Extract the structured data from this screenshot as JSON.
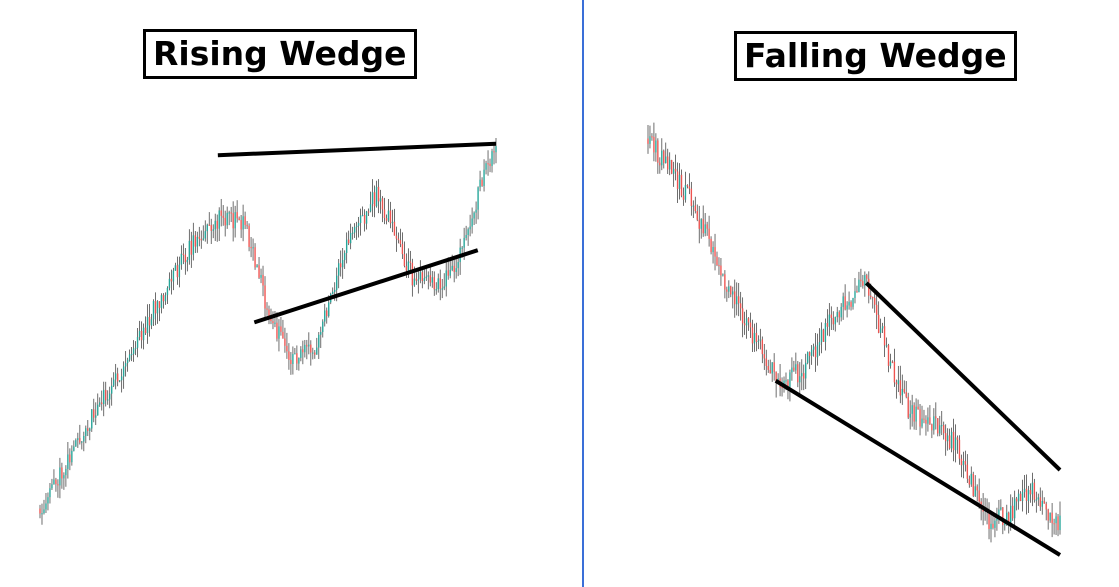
{
  "colors": {
    "bull": "#26a69a",
    "bear": "#ef5350",
    "wick": "#4a4a4a",
    "trendline": "#000000",
    "divider": "#3a6fd8"
  },
  "chart_data": [
    {
      "type": "candlestick",
      "title": "Rising Wedge",
      "price_path": [
        [
          0,
          0.03
        ],
        [
          0.08,
          0.2
        ],
        [
          0.18,
          0.4
        ],
        [
          0.28,
          0.62
        ],
        [
          0.33,
          0.72
        ],
        [
          0.4,
          0.8
        ],
        [
          0.45,
          0.78
        ],
        [
          0.5,
          0.55
        ],
        [
          0.55,
          0.42
        ],
        [
          0.6,
          0.45
        ],
        [
          0.67,
          0.72
        ],
        [
          0.74,
          0.86
        ],
        [
          0.82,
          0.63
        ],
        [
          0.88,
          0.62
        ],
        [
          0.93,
          0.72
        ],
        [
          0.97,
          0.9
        ],
        [
          1.0,
          0.97
        ]
      ],
      "trendlines": [
        {
          "role": "upper",
          "from": [
            0.39,
            0.96
          ],
          "to": [
            1.0,
            0.99
          ]
        },
        {
          "role": "lower",
          "from": [
            0.47,
            0.52
          ],
          "to": [
            0.96,
            0.71
          ]
        }
      ]
    },
    {
      "type": "candlestick",
      "title": "Falling Wedge",
      "price_path": [
        [
          0,
          0.98
        ],
        [
          0.1,
          0.84
        ],
        [
          0.2,
          0.62
        ],
        [
          0.32,
          0.4
        ],
        [
          0.38,
          0.44
        ],
        [
          0.46,
          0.58
        ],
        [
          0.53,
          0.64
        ],
        [
          0.58,
          0.48
        ],
        [
          0.63,
          0.34
        ],
        [
          0.7,
          0.3
        ],
        [
          0.75,
          0.26
        ],
        [
          0.82,
          0.08
        ],
        [
          0.88,
          0.1
        ],
        [
          0.93,
          0.16
        ],
        [
          0.99,
          0.08
        ]
      ],
      "trendlines": [
        {
          "role": "upper",
          "from": [
            0.53,
            0.64
          ],
          "to": [
            1.0,
            0.2
          ]
        },
        {
          "role": "lower",
          "from": [
            0.31,
            0.41
          ],
          "to": [
            1.0,
            0.0
          ]
        }
      ]
    }
  ]
}
